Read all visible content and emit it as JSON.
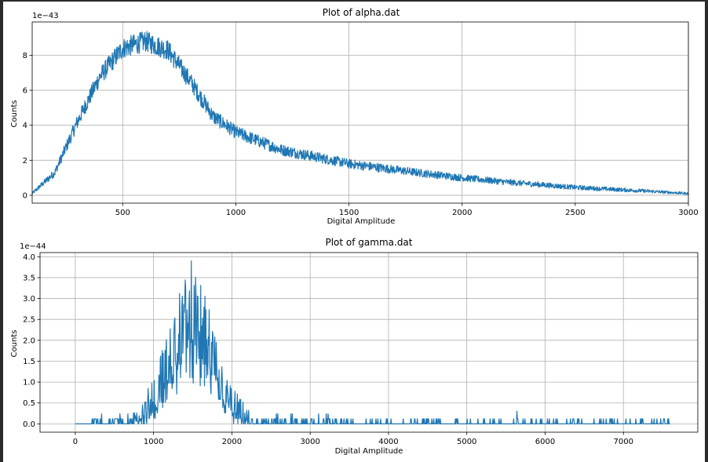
{
  "chart_data": [
    {
      "type": "line",
      "title": "Plot of alpha.dat",
      "xlabel": "Digital Amplitude",
      "ylabel": "Counts",
      "offset_label": "1e−43",
      "xlim": [
        100,
        3000
      ],
      "ylim": [
        -0.45,
        9.9
      ],
      "grid": true,
      "color": "#1f77b4",
      "xticks": [
        500,
        1000,
        1500,
        2000,
        2500,
        3000
      ],
      "yticks": [
        0,
        2,
        4,
        6,
        8
      ],
      "envelope": {
        "x": [
          100,
          200,
          300,
          400,
          500,
          600,
          700,
          800,
          900,
          1000,
          1200,
          1500,
          1800,
          2000,
          2200,
          2500,
          2800,
          3000
        ],
        "y": [
          0.1,
          1.3,
          4.2,
          6.8,
          8.4,
          8.8,
          8.3,
          6.5,
          4.5,
          3.6,
          2.6,
          1.8,
          1.3,
          1.0,
          0.75,
          0.45,
          0.25,
          0.1
        ]
      },
      "noise_amplitude": 0.55
    },
    {
      "type": "line",
      "title": "Plot of gamma.dat",
      "xlabel": "Digital Amplitude",
      "ylabel": "Counts",
      "offset_label": "1e−44",
      "xlim": [
        -450,
        7950
      ],
      "ylim": [
        -0.2,
        4.1
      ],
      "grid": true,
      "color": "#1f77b4",
      "xticks": [
        0,
        1000,
        2000,
        3000,
        4000,
        5000,
        6000,
        7000
      ],
      "yticks": [
        0.0,
        0.5,
        1.0,
        1.5,
        2.0,
        2.5,
        3.0,
        3.5,
        4.0
      ],
      "ytick_labels": [
        "0.0",
        "0.5",
        "1.0",
        "1.5",
        "2.0",
        "2.5",
        "3.0",
        "3.5",
        "4.0"
      ],
      "peak": {
        "center": 1480,
        "width": 280,
        "height": 2.6,
        "max": 3.9
      },
      "x_range": [
        0,
        7600
      ],
      "sparse_spike_height": 0.12,
      "tail_spike_x": [
        5640
      ]
    }
  ]
}
